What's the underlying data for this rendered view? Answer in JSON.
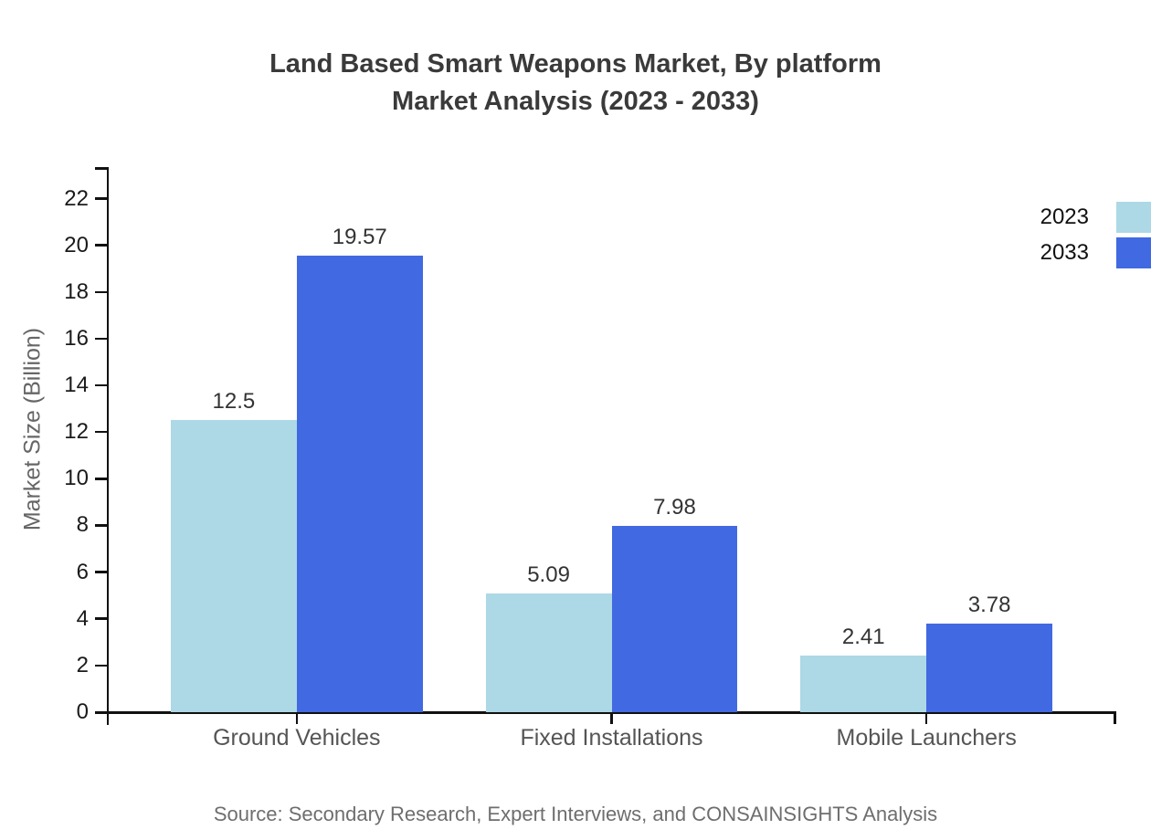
{
  "title": {
    "line1": "Land Based Smart Weapons Market, By platform",
    "line2": "Market Analysis (2023 - 2033)"
  },
  "source": "Source: Secondary Research, Expert Interviews, and CONSAINSIGHTS Analysis",
  "chart_data": {
    "type": "bar",
    "categories": [
      "Ground Vehicles",
      "Fixed Installations",
      "Mobile Launchers"
    ],
    "series": [
      {
        "name": "2023",
        "color": "#ADD8E6",
        "values": [
          12.5,
          5.09,
          2.41
        ]
      },
      {
        "name": "2033",
        "color": "#4169E1",
        "values": [
          19.57,
          7.98,
          3.78
        ]
      }
    ],
    "value_labels": [
      [
        "12.5",
        "5.09",
        "2.41"
      ],
      [
        "19.57",
        "7.98",
        "3.78"
      ]
    ],
    "xlabel": "",
    "ylabel": "Market Size (Billion)",
    "yticks": [
      0,
      2,
      4,
      6,
      8,
      10,
      12,
      14,
      16,
      18,
      20,
      22
    ],
    "ylim": [
      0,
      23.35
    ],
    "grid": false,
    "legend_position": "top-right",
    "bar_width_ratio": 0.4,
    "axis_color": "#111111",
    "background_color": "#ffffff"
  }
}
